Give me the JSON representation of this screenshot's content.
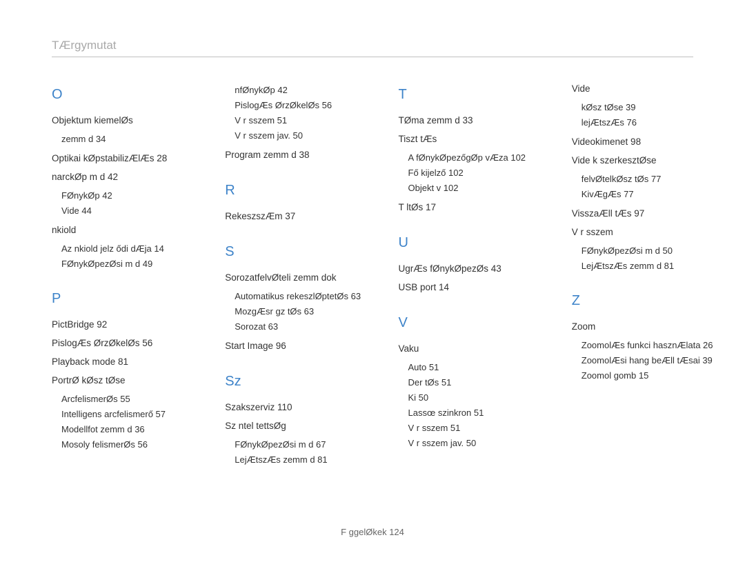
{
  "header": {
    "title": "TÆrgymutat"
  },
  "footer": {
    "text": "F ggelØkek  124"
  },
  "columns": [
    {
      "sections": [
        {
          "letter": "O",
          "entries": [
            {
              "title": "Objektum kiemelØs",
              "subs": [
                "zemm d  34"
              ]
            },
            {
              "title": "Optikai kØpstabilizÆlÆs  28"
            },
            {
              "title": "narckØp m d  42",
              "subs": [
                "FØnykØp  42",
                "Vide  44"
              ]
            },
            {
              "title": "nkiold",
              "subs": [
                "Az  nkiold  jelz  ődi dÆja  14",
                "FØnykØpezØsi m d  49"
              ]
            }
          ]
        },
        {
          "letter": "P",
          "entries": [
            {
              "title": "PictBridge  92"
            },
            {
              "title": "PislogÆs ØrzØkelØs  56"
            },
            {
              "title": "Playback mode  81"
            },
            {
              "title": "PortrØ kØsz tØse",
              "subs": [
                "ArcfelismerØs  55",
                "Intelligens arcfelismerő  57",
                "Modellfot  zemm d  36",
                "Mosoly felismerØs  56"
              ]
            }
          ]
        }
      ]
    },
    {
      "sections": [
        {
          "letter": "",
          "entries": [
            {
              "title": "",
              "subs": [
                "nfØnykØp  42",
                "PislogÆs ØrzØkelØs  56",
                "V r sszem  51",
                "V r sszem jav.  50"
              ]
            },
            {
              "title": "Program  zemm d  38"
            }
          ]
        },
        {
          "letter": "R",
          "entries": [
            {
              "title": "RekeszszÆm  37"
            }
          ]
        },
        {
          "letter": "S",
          "entries": [
            {
              "title": "SorozatfelvØteli  zemm dok",
              "subs": [
                "Automatikus rekeszlØptetØs  63",
                "MozgÆsr gz tØs  63",
                "Sorozat  63"
              ]
            },
            {
              "title": "Start Image  96"
            }
          ]
        },
        {
          "letter": "Sz",
          "entries": [
            {
              "title": "Szakszerviz  110"
            },
            {
              "title": "Sz ntel tettsØg",
              "subs": [
                "FØnykØpezØsi m d  67",
                "LejÆtszÆs  zemm d  81"
              ]
            }
          ]
        }
      ]
    },
    {
      "sections": [
        {
          "letter": "T",
          "entries": [
            {
              "title": "TØma  zemm d  33"
            },
            {
              "title": "Tiszt tÆs",
              "subs": [
                "A fØnykØpezőgØp vÆza  102",
                "Fő kijelző  102",
                "Objekt v  102"
              ]
            },
            {
              "title": "T ltØs  17"
            }
          ]
        },
        {
          "letter": "U",
          "entries": [
            {
              "title": "UgrÆs fØnykØpezØs  43"
            },
            {
              "title": "USB port  14"
            }
          ]
        },
        {
          "letter": "V",
          "entries": [
            {
              "title": "Vaku",
              "subs": [
                "Auto  51",
                "Der tØs  51",
                "Ki  50",
                "Lassœ szinkron  51",
                "V r sszem  51",
                "V r sszem jav.  50"
              ]
            }
          ]
        }
      ]
    },
    {
      "sections": [
        {
          "letter": "",
          "entries": [
            {
              "title": "Vide",
              "subs": [
                "kØsz tØse  39",
                "lejÆtszÆs  76"
              ]
            },
            {
              "title": "Videokimenet  98"
            },
            {
              "title": "Vide k szerkesztØse",
              "subs": [
                "felvØtelkØsz tØs  77",
                "KivÆgÆs  77"
              ]
            },
            {
              "title": "VisszaÆll tÆs  97"
            },
            {
              "title": "V r sszem",
              "subs": [
                "FØnykØpezØsi m d  50",
                "LejÆtszÆs  zemm d  81"
              ]
            }
          ]
        },
        {
          "letter": "Z",
          "entries": [
            {
              "title": "Zoom",
              "subs": [
                "ZoomolÆs funkci  hasznÆlata  26",
                "ZoomolÆsi hang beÆll tÆsai  39",
                "Zoomol  gomb  15"
              ]
            }
          ]
        }
      ]
    }
  ]
}
